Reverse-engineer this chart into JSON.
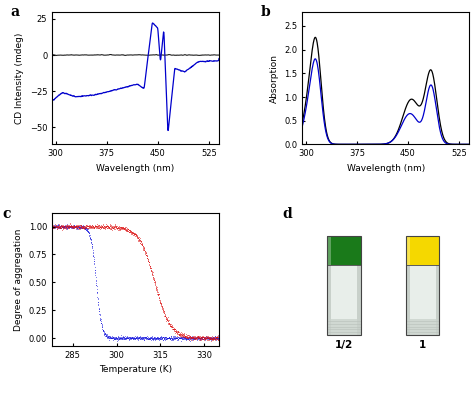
{
  "panel_a": {
    "label": "a",
    "xlabel": "Wavelength (nm)",
    "ylabel": "CD Intensity (mdeg)",
    "xlim": [
      295,
      540
    ],
    "ylim": [
      -62,
      30
    ],
    "yticks": [
      -50,
      -25,
      0,
      25
    ],
    "xticks": [
      300,
      375,
      450,
      525
    ],
    "blue_color": "#0000cc",
    "black_color": "#000000"
  },
  "panel_b": {
    "label": "b",
    "xlabel": "Wavelength (nm)",
    "ylabel": "Absorption",
    "xlim": [
      295,
      540
    ],
    "ylim": [
      0.0,
      2.8
    ],
    "yticks": [
      0.0,
      0.5,
      1.0,
      1.5,
      2.0,
      2.5
    ],
    "xticks": [
      300,
      375,
      450,
      525
    ],
    "blue_color": "#0000cc",
    "black_color": "#000000"
  },
  "panel_c": {
    "label": "c",
    "xlabel": "Temperature (K)",
    "ylabel": "Degree of aggregation",
    "xlim": [
      278,
      335
    ],
    "ylim": [
      -0.07,
      1.12
    ],
    "yticks": [
      0.0,
      0.25,
      0.5,
      0.75,
      1.0
    ],
    "xticks": [
      285,
      300,
      315,
      330
    ],
    "blue_color": "#1111dd",
    "red_color": "#dd1111"
  },
  "panel_d": {
    "label": "d",
    "text1": "1/2",
    "text2": "1",
    "green_color": "#1a7a1a",
    "yellow_color": "#f5d800",
    "vial_body": "#e8eeea",
    "vial_bottom": "#d5ddd6"
  }
}
